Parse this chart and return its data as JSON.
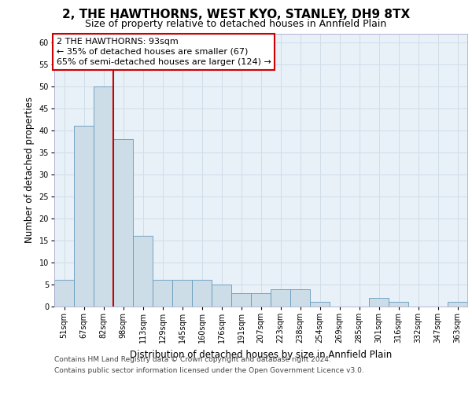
{
  "title": "2, THE HAWTHORNS, WEST KYO, STANLEY, DH9 8TX",
  "subtitle": "Size of property relative to detached houses in Annfield Plain",
  "xlabel": "Distribution of detached houses by size in Annfield Plain",
  "ylabel": "Number of detached properties",
  "bar_labels": [
    "51sqm",
    "67sqm",
    "82sqm",
    "98sqm",
    "113sqm",
    "129sqm",
    "145sqm",
    "160sqm",
    "176sqm",
    "191sqm",
    "207sqm",
    "223sqm",
    "238sqm",
    "254sqm",
    "269sqm",
    "285sqm",
    "301sqm",
    "316sqm",
    "332sqm",
    "347sqm",
    "363sqm"
  ],
  "bar_values": [
    6,
    41,
    50,
    38,
    16,
    6,
    6,
    6,
    5,
    3,
    3,
    4,
    4,
    1,
    0,
    0,
    2,
    1,
    0,
    0,
    1
  ],
  "bar_color": "#ccdde8",
  "bar_edge_color": "#6699bb",
  "grid_color": "#d0dde8",
  "background_color": "#ffffff",
  "plot_bg_color": "#e8f0f8",
  "vline_x": 2.5,
  "vline_color": "#cc0000",
  "annotation_text_line1": "2 THE HAWTHORNS: 93sqm",
  "annotation_text_line2": "← 35% of detached houses are smaller (67)",
  "annotation_text_line3": "65% of semi-detached houses are larger (124) →",
  "ylim": [
    0,
    62
  ],
  "yticks": [
    0,
    5,
    10,
    15,
    20,
    25,
    30,
    35,
    40,
    45,
    50,
    55,
    60
  ],
  "footer_line1": "Contains HM Land Registry data © Crown copyright and database right 2024.",
  "footer_line2": "Contains public sector information licensed under the Open Government Licence v3.0.",
  "title_fontsize": 11,
  "subtitle_fontsize": 9,
  "xlabel_fontsize": 8.5,
  "ylabel_fontsize": 8.5,
  "tick_fontsize": 7,
  "annotation_fontsize": 8,
  "footer_fontsize": 6.5
}
